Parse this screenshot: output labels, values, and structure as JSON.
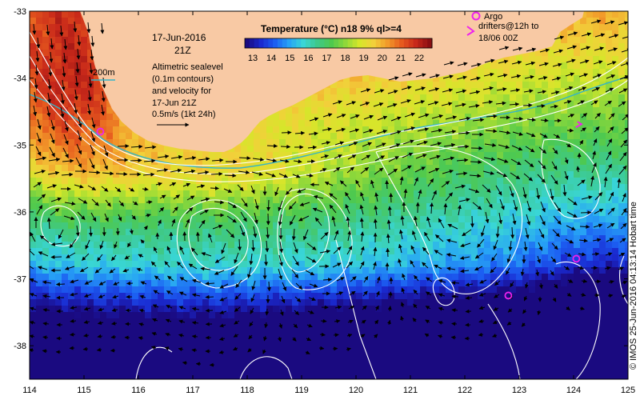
{
  "map": {
    "title": "Temperature (°C) n18 9% ql>=4",
    "x_ticks": [
      "114",
      "115",
      "116",
      "117",
      "118",
      "119",
      "120",
      "121",
      "122",
      "123",
      "124",
      "125"
    ],
    "y_ticks": [
      "-33",
      "-34",
      "-35",
      "-36",
      "-37",
      "-38"
    ],
    "date_line1": "17-Jun-2016",
    "date_line2": "21Z",
    "isobath_label": "200m",
    "desc_lines": [
      "Altimetric sealevel",
      "(0.1m contours)",
      "and velocity for",
      "17-Jun 21Z",
      "0.5m/s (1kt 24h)"
    ],
    "argo_title": "Argo",
    "argo_lines": [
      "drifters@12h to",
      "18/06 00Z"
    ],
    "side_credit": "© IMOS 25-Jun-2016 04:13:14 Hobart time"
  },
  "colorbar": {
    "labels": [
      "13",
      "14",
      "15",
      "16",
      "17",
      "18",
      "19",
      "20",
      "21",
      "22"
    ],
    "colors": [
      "#1a0a80",
      "#1a2ad0",
      "#1c5ff2",
      "#27a3f5",
      "#39d6d6",
      "#3ec98a",
      "#4ec94e",
      "#8fd83a",
      "#d6e62a",
      "#f2d03a",
      "#f29a2a",
      "#e65a1e",
      "#c8281a",
      "#8a0f12"
    ]
  },
  "colors": {
    "land": "#f8c9a4",
    "contour": "#ffffff",
    "arrow": "#000000",
    "argo": "#ee22ee",
    "isobath": "#34b4c8"
  },
  "chart_data": {
    "type": "heatmap",
    "title": "Temperature (°C) n18 9% ql>=4",
    "xlabel": "",
    "ylabel": "",
    "x_range": [
      114,
      125
    ],
    "y_range": [
      -38.5,
      -33
    ],
    "colorbar_range": [
      13,
      22
    ],
    "argo_floats": [
      {
        "lon": 115.3,
        "lat": -34.8
      },
      {
        "lon": 122.8,
        "lat": -37.25
      },
      {
        "lon": 124.05,
        "lat": -36.7
      }
    ],
    "argo_drift_marker": {
      "lon": 124.1,
      "lat": -34.7
    }
  }
}
